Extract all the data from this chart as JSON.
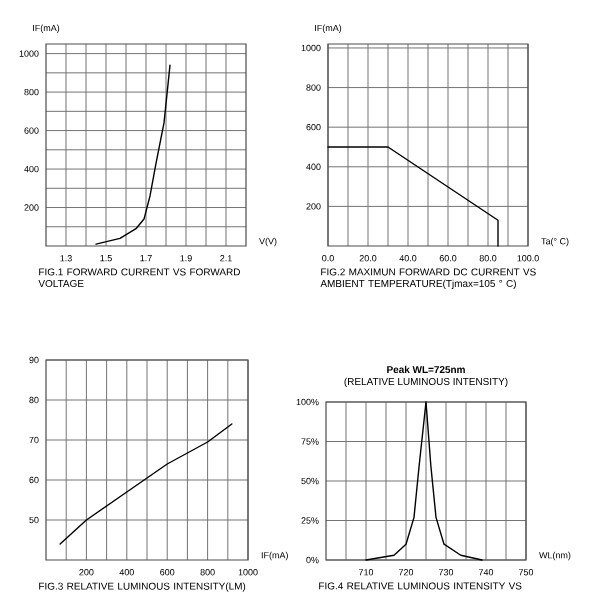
{
  "chart_data": [
    {
      "type": "line",
      "ylabel": "IF(mA)",
      "xlabel": "V(V)",
      "annotations": [
        "FIG.1  FORWARD  CURRENT VS FORWARD  VOLTAGE"
      ],
      "color": "#000000",
      "grid": true,
      "x": [
        1.45,
        1.57,
        1.65,
        1.69,
        1.72,
        1.75,
        1.79,
        1.82
      ],
      "values": [
        10,
        40,
        90,
        140,
        260,
        430,
        640,
        940
      ],
      "xlim": [
        1.2,
        2.2
      ],
      "ylim": [
        0,
        1050
      ],
      "xticks": [
        {
          "value": 1.3,
          "label": "1.3"
        },
        {
          "value": 1.4,
          "label": null
        },
        {
          "value": 1.5,
          "label": "1.5"
        },
        {
          "value": 1.6,
          "label": null
        },
        {
          "value": 1.7,
          "label": "1.7"
        },
        {
          "value": 1.8,
          "label": null
        },
        {
          "value": 1.9,
          "label": "1.9"
        },
        {
          "value": 2.0,
          "label": null
        },
        {
          "value": 2.1,
          "label": "2.1"
        }
      ],
      "yticks": [
        {
          "value": 100,
          "label": null
        },
        200,
        {
          "value": 300,
          "label": null
        },
        400,
        {
          "value": 500,
          "label": null
        },
        600,
        {
          "value": 700,
          "label": null
        },
        800,
        {
          "value": 900,
          "label": null
        },
        1000
      ]
    },
    {
      "type": "line",
      "ylabel": "IF(mA)",
      "xlabel": "Ta(° C)",
      "annotations": [
        "FIG.2  MAXIMUN  FORWARD DC  CURRENT VS  AMBIENT  TEMPERATURE(Tjmax=105 ° C)"
      ],
      "color": "#000000",
      "grid": true,
      "x": [
        0,
        30,
        85,
        85
      ],
      "values": [
        500,
        500,
        130,
        0
      ],
      "xlim": [
        0,
        100
      ],
      "ylim": [
        0,
        1020
      ],
      "xticks": [
        {
          "value": 0,
          "label": "0.0"
        },
        {
          "value": 10,
          "label": null
        },
        {
          "value": 20,
          "label": "20.0"
        },
        {
          "value": 30,
          "label": null
        },
        {
          "value": 40,
          "label": "40.0"
        },
        {
          "value": 50,
          "label": null
        },
        {
          "value": 60,
          "label": "60.0"
        },
        {
          "value": 70,
          "label": null
        },
        {
          "value": 80,
          "label": "80.0"
        },
        {
          "value": 90,
          "label": null
        },
        {
          "value": 100,
          "label": "100.0"
        }
      ],
      "yticks": [
        200,
        400,
        600,
        800,
        1000
      ]
    },
    {
      "type": "line",
      "xlabel": "IF(mA)",
      "annotations": [
        "FIG.3 RELATIVE LUMINOUS INTENSITY(LM)"
      ],
      "color": "#000000",
      "grid": true,
      "x": [
        70,
        200,
        400,
        600,
        800,
        920
      ],
      "values": [
        44,
        50,
        57,
        64,
        69.5,
        74
      ],
      "xlim": [
        0,
        1000
      ],
      "ylim": [
        40,
        90
      ],
      "xticks": [
        {
          "value": 100,
          "label": null
        },
        200,
        {
          "value": 300,
          "label": null
        },
        400,
        {
          "value": 500,
          "label": null
        },
        600,
        {
          "value": 700,
          "label": null
        },
        800,
        {
          "value": 900,
          "label": null
        },
        1000
      ],
      "yticks": [
        50,
        60,
        70,
        80,
        90
      ]
    },
    {
      "type": "line",
      "title": "Peak  WL=725nm",
      "subtitle": "(RELATIVE LUMINOUS INTENSITY)",
      "xlabel": "WL(nm)",
      "annotations": [
        "FIG.4 RELATIVE LUMINOUS INTENSITY VS"
      ],
      "color": "#000000",
      "grid": true,
      "x": [
        710,
        717,
        720,
        722,
        723.3,
        725,
        726.2,
        727.5,
        729.5,
        733.7,
        739
      ],
      "values": [
        0,
        3,
        10,
        27,
        60,
        100,
        60,
        27,
        10,
        3,
        0
      ],
      "xlim": [
        700,
        750
      ],
      "ylim": [
        0,
        100
      ],
      "xticks": [
        {
          "value": 705,
          "label": null
        },
        710,
        {
          "value": 715,
          "label": null
        },
        720,
        {
          "value": 725,
          "label": null
        },
        730,
        {
          "value": 735,
          "label": null
        },
        740,
        {
          "value": 745,
          "label": null
        },
        750
      ],
      "yticks": [
        {
          "value": 0,
          "label": "0%"
        },
        {
          "value": 25,
          "label": "25%"
        },
        {
          "value": 50,
          "label": "50%"
        },
        {
          "value": 75,
          "label": "75%"
        },
        {
          "value": 100,
          "label": "100%"
        }
      ]
    }
  ]
}
